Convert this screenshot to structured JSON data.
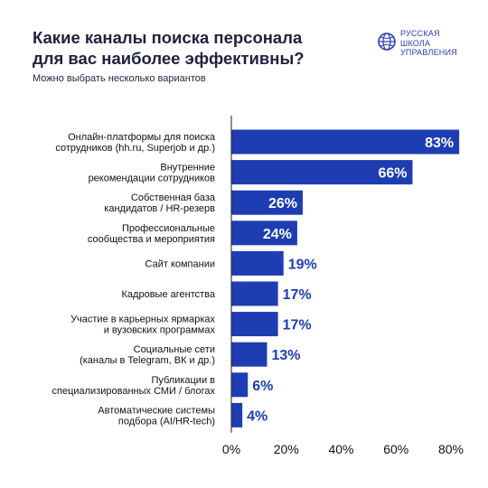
{
  "header": {
    "title_lines": [
      "Какие каналы поиска персонала",
      "для вас наиболее эффективны?"
    ],
    "subtitle": "Можно выбрать несколько вариантов"
  },
  "logo": {
    "lines": [
      "РУССКАЯ",
      "ШКОЛА",
      "УПРАВЛЕНИЯ"
    ],
    "icon": "globe-emblem-icon"
  },
  "colors": {
    "bar": "#1e3db3",
    "title": "#1f2140",
    "label_outside": "#1e3db3",
    "label_inside": "#ffffff"
  },
  "chart_data": {
    "type": "bar",
    "orientation": "horizontal",
    "title": "Какие каналы поиска персонала для вас наиболее эффективны?",
    "subtitle": "Можно выбрать несколько вариантов",
    "categories": [
      [
        "Онлайн-платформы для поиска",
        "сотрудников (hh.ru, Superjob и др.)"
      ],
      [
        "Внутренние",
        "рекомендации сотрудников"
      ],
      [
        "Собственная база",
        "кандидатов / HR-резерв"
      ],
      [
        "Профессиональные",
        "сообщества и мероприятия"
      ],
      [
        "Сайт компании"
      ],
      [
        "Кадровые агентства"
      ],
      [
        "Участие в карьерных ярмарках",
        "и вузовских программах"
      ],
      [
        "Социальные сети",
        "(каналы в Telegram, ВК и др.)"
      ],
      [
        "Публикации в",
        "специализированных СМИ / блогах"
      ],
      [
        "Автоматические системы",
        "подбора (AI/HR-tech)"
      ]
    ],
    "values": [
      83,
      66,
      26,
      24,
      19,
      17,
      17,
      13,
      6,
      4
    ],
    "value_labels": [
      "83%",
      "66%",
      "26%",
      "24%",
      "19%",
      "17%",
      "17%",
      "13%",
      "6%",
      "4%"
    ],
    "xlim": [
      0,
      80
    ],
    "xticks": [
      0,
      20,
      40,
      60,
      80
    ],
    "xtick_labels": [
      "0%",
      "20%",
      "40%",
      "60%",
      "80%"
    ],
    "grid": false,
    "legend": "none"
  }
}
